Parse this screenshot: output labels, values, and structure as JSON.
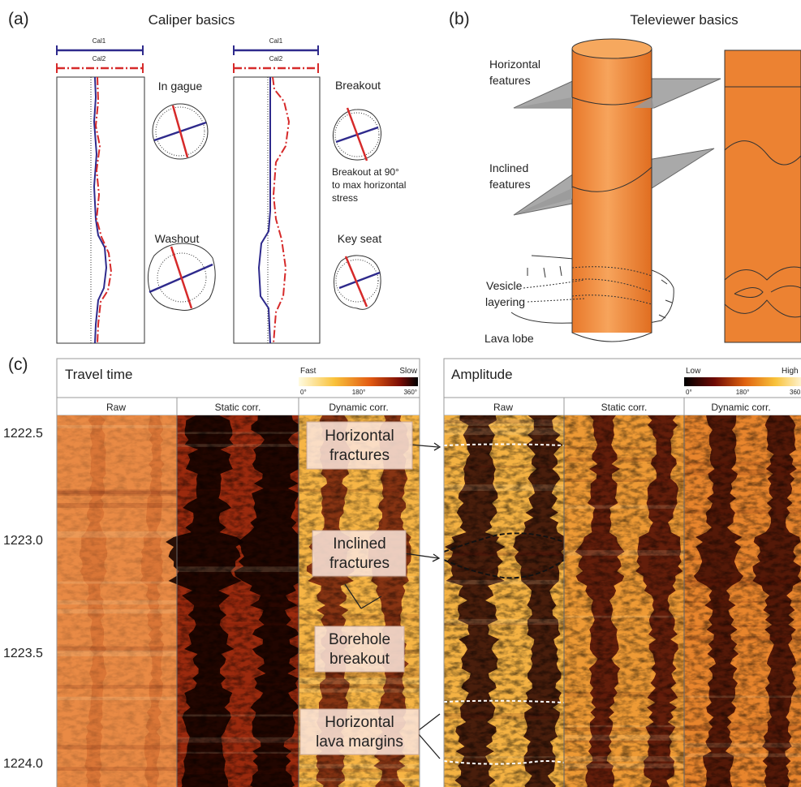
{
  "panel_a": {
    "label": "(a)",
    "title": "Caliper basics",
    "logs": [
      {
        "cal1": "Cal1",
        "cal2": "Cal2",
        "cases": [
          "In gague",
          "Washout"
        ]
      },
      {
        "cal1": "Cal1",
        "cal2": "Cal2",
        "cases": [
          "Breakout",
          "Key seat"
        ]
      }
    ],
    "note": [
      "Breakout at 90°",
      "to max horizontal",
      "stress"
    ]
  },
  "panel_b": {
    "label": "(b)",
    "title": "Televiewer basics",
    "horizontal": [
      "Horizontal",
      "features"
    ],
    "inclined": [
      "Inclined",
      "features"
    ],
    "vesicle": [
      "Vesicle",
      "layering"
    ],
    "lobe": "Lava lobe"
  },
  "panel_c": {
    "label": "(c)",
    "depths": [
      "1222.5",
      "1223.0",
      "1223.5",
      "1224.0"
    ],
    "travel_time": {
      "title": "Travel time",
      "scale_low": "Fast",
      "scale_high": "Slow",
      "scale_ticks": [
        "0°",
        "180°",
        "360°"
      ],
      "columns": [
        "Raw",
        "Static corr.",
        "Dynamic corr."
      ]
    },
    "amplitude": {
      "title": "Amplitude",
      "scale_low": "Low",
      "scale_high": "High",
      "scale_ticks": [
        "0°",
        "180°",
        "360"
      ],
      "columns": [
        "Raw",
        "Static corr.",
        "Dynamic corr."
      ]
    },
    "annotations": [
      [
        "Horizontal",
        "fractures"
      ],
      [
        "Inclined",
        "fractures"
      ],
      [
        "Borehole",
        "breakout"
      ],
      [
        "Horizontal",
        "lava margins"
      ]
    ]
  }
}
